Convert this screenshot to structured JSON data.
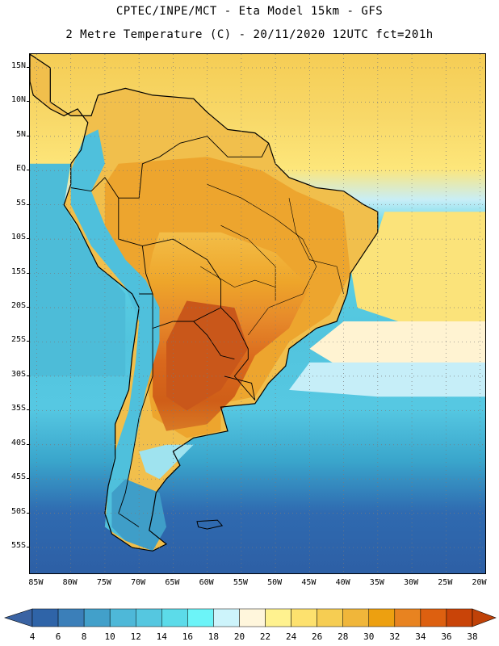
{
  "header": {
    "line1": "CPTEC/INPE/MCT -  Eta Model 15km - GFS",
    "line2": "2 Metre Temperature (C) - 20/11/2020 12UTC fct=201h"
  },
  "map": {
    "lon_range": [
      -86,
      -19
    ],
    "lat_range": [
      -59,
      17
    ],
    "lat_ticks": [
      {
        "value": 15,
        "label": "15N"
      },
      {
        "value": 10,
        "label": "10N"
      },
      {
        "value": 5,
        "label": "5N"
      },
      {
        "value": 0,
        "label": "EQ"
      },
      {
        "value": -5,
        "label": "5S"
      },
      {
        "value": -10,
        "label": "10S"
      },
      {
        "value": -15,
        "label": "15S"
      },
      {
        "value": -20,
        "label": "20S"
      },
      {
        "value": -25,
        "label": "25S"
      },
      {
        "value": -30,
        "label": "30S"
      },
      {
        "value": -35,
        "label": "35S"
      },
      {
        "value": -40,
        "label": "40S"
      },
      {
        "value": -45,
        "label": "45S"
      },
      {
        "value": -50,
        "label": "50S"
      },
      {
        "value": -55,
        "label": "55S"
      }
    ],
    "lon_ticks": [
      {
        "value": -85,
        "label": "85W"
      },
      {
        "value": -80,
        "label": "80W"
      },
      {
        "value": -75,
        "label": "75W"
      },
      {
        "value": -70,
        "label": "70W"
      },
      {
        "value": -65,
        "label": "65W"
      },
      {
        "value": -60,
        "label": "60W"
      },
      {
        "value": -55,
        "label": "55W"
      },
      {
        "value": -50,
        "label": "50W"
      },
      {
        "value": -45,
        "label": "45W"
      },
      {
        "value": -40,
        "label": "40W"
      },
      {
        "value": -35,
        "label": "35W"
      },
      {
        "value": -30,
        "label": "30W"
      },
      {
        "value": -25,
        "label": "25W"
      },
      {
        "value": -20,
        "label": "20W"
      }
    ]
  },
  "colorbar": {
    "labels": [
      "4",
      "6",
      "8",
      "10",
      "12",
      "14",
      "16",
      "18",
      "20",
      "22",
      "24",
      "26",
      "28",
      "30",
      "32",
      "34",
      "36",
      "38"
    ],
    "colors": [
      "#2f64a8",
      "#3b7fb9",
      "#42a0ca",
      "#4eb8d8",
      "#55c7e0",
      "#5cdbe9",
      "#6cf4f8",
      "#cdf4fb",
      "#fff6dc",
      "#fff28f",
      "#fde16e",
      "#f6cd52",
      "#f0b63a",
      "#eda010",
      "#e88320",
      "#dd6010",
      "#c94408"
    ],
    "under_color": "#3a63a3",
    "over_color": "#c04208"
  }
}
